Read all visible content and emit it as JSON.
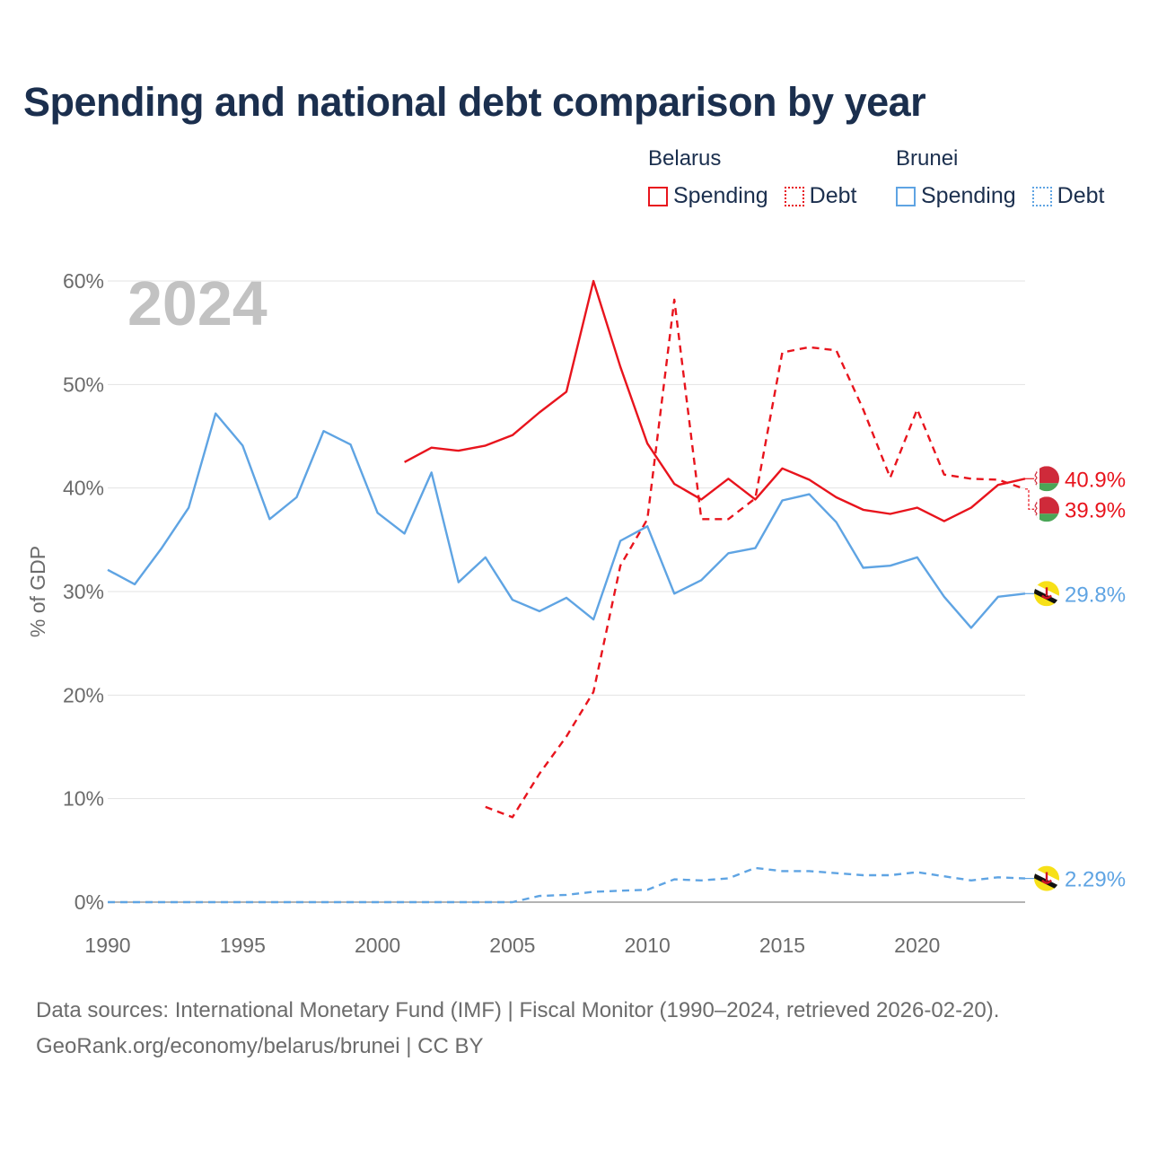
{
  "title": "Spending and national debt comparison by year",
  "legend": {
    "belarus": {
      "country": "Belarus",
      "spending": "Spending",
      "debt": "Debt",
      "color": "#e8141d"
    },
    "brunei": {
      "country": "Brunei",
      "spending": "Spending",
      "debt": "Debt",
      "color": "#5fa4e3"
    }
  },
  "year_watermark": "2024",
  "footer": {
    "line1": "Data sources: International Monetary Fund (IMF) | Fiscal Monitor (1990–2024, retrieved 2026-02-20).",
    "line2": "GeoRank.org/economy/belarus/brunei | CC BY"
  },
  "chart_data": {
    "type": "line",
    "title": "Spending and national debt comparison by year",
    "xlabel": "",
    "ylabel": "% of GDP",
    "xlim": [
      1990,
      2024
    ],
    "ylim": [
      0,
      60
    ],
    "xticks": [
      1990,
      1995,
      2000,
      2005,
      2010,
      2015,
      2020
    ],
    "xtick_labels": [
      "1990",
      "1995",
      "2000",
      "2005",
      "2010",
      "2015",
      "2020"
    ],
    "yticks": [
      0,
      10,
      20,
      30,
      40,
      50,
      60
    ],
    "ytick_labels": [
      "0%",
      "10%",
      "20%",
      "30%",
      "40%",
      "50%",
      "60%"
    ],
    "grid": true,
    "series": [
      {
        "name": "Belarus Spending",
        "country": "Belarus",
        "metric": "Spending",
        "style": "solid",
        "color": "#e8141d",
        "end_label": "40.9%",
        "flag": "belarus",
        "x": [
          2001,
          2002,
          2003,
          2004,
          2005,
          2006,
          2007,
          2008,
          2009,
          2010,
          2011,
          2012,
          2013,
          2014,
          2015,
          2016,
          2017,
          2018,
          2019,
          2020,
          2021,
          2022,
          2023,
          2024
        ],
        "values": [
          42.5,
          43.9,
          43.6,
          44.1,
          45.1,
          47.3,
          49.3,
          60.0,
          51.7,
          44.3,
          40.4,
          38.9,
          40.9,
          38.9,
          41.9,
          40.8,
          39.1,
          37.9,
          37.5,
          38.1,
          36.8,
          38.1,
          40.3,
          40.9
        ]
      },
      {
        "name": "Belarus Debt",
        "country": "Belarus",
        "metric": "Debt",
        "style": "dashed",
        "color": "#e8141d",
        "end_label": "39.9%",
        "flag": "belarus",
        "x": [
          2004,
          2005,
          2006,
          2007,
          2008,
          2009,
          2010,
          2011,
          2012,
          2013,
          2014,
          2015,
          2016,
          2017,
          2018,
          2019,
          2020,
          2021,
          2022,
          2023,
          2024
        ],
        "values": [
          9.2,
          8.2,
          12.4,
          16.0,
          20.3,
          32.5,
          37.0,
          58.2,
          37.0,
          37.0,
          39.0,
          53.1,
          53.6,
          53.3,
          47.6,
          41.0,
          47.6,
          41.3,
          40.9,
          40.8,
          39.9
        ]
      },
      {
        "name": "Brunei Spending",
        "country": "Brunei",
        "metric": "Spending",
        "style": "solid",
        "color": "#5fa4e3",
        "end_label": "29.8%",
        "flag": "brunei",
        "x": [
          1990,
          1991,
          1992,
          1993,
          1994,
          1995,
          1996,
          1997,
          1998,
          1999,
          2000,
          2001,
          2002,
          2003,
          2004,
          2005,
          2006,
          2007,
          2008,
          2009,
          2010,
          2011,
          2012,
          2013,
          2014,
          2015,
          2016,
          2017,
          2018,
          2019,
          2020,
          2021,
          2022,
          2023,
          2024
        ],
        "values": [
          32.1,
          30.7,
          34.2,
          38.1,
          47.2,
          44.1,
          37.0,
          39.1,
          45.5,
          44.2,
          37.6,
          35.6,
          41.5,
          30.9,
          33.3,
          29.2,
          28.1,
          29.4,
          27.3,
          34.9,
          36.3,
          29.8,
          31.1,
          33.7,
          34.2,
          38.8,
          39.4,
          36.7,
          32.3,
          32.5,
          33.3,
          29.5,
          26.5,
          29.5,
          29.8
        ]
      },
      {
        "name": "Brunei Debt",
        "country": "Brunei",
        "metric": "Debt",
        "style": "dashed",
        "color": "#5fa4e3",
        "end_label": "2.29%",
        "flag": "brunei",
        "x": [
          1990,
          1991,
          1992,
          1993,
          1994,
          1995,
          1996,
          1997,
          1998,
          1999,
          2000,
          2001,
          2002,
          2003,
          2004,
          2005,
          2006,
          2007,
          2008,
          2009,
          2010,
          2011,
          2012,
          2013,
          2014,
          2015,
          2016,
          2017,
          2018,
          2019,
          2020,
          2021,
          2022,
          2023,
          2024
        ],
        "values": [
          0,
          0,
          0,
          0,
          0,
          0,
          0,
          0,
          0,
          0,
          0,
          0,
          0,
          0,
          0,
          0,
          0.6,
          0.7,
          1.0,
          1.1,
          1.2,
          2.2,
          2.1,
          2.3,
          3.3,
          3.0,
          3.0,
          2.8,
          2.6,
          2.6,
          2.9,
          2.5,
          2.1,
          2.4,
          2.29
        ]
      }
    ]
  }
}
